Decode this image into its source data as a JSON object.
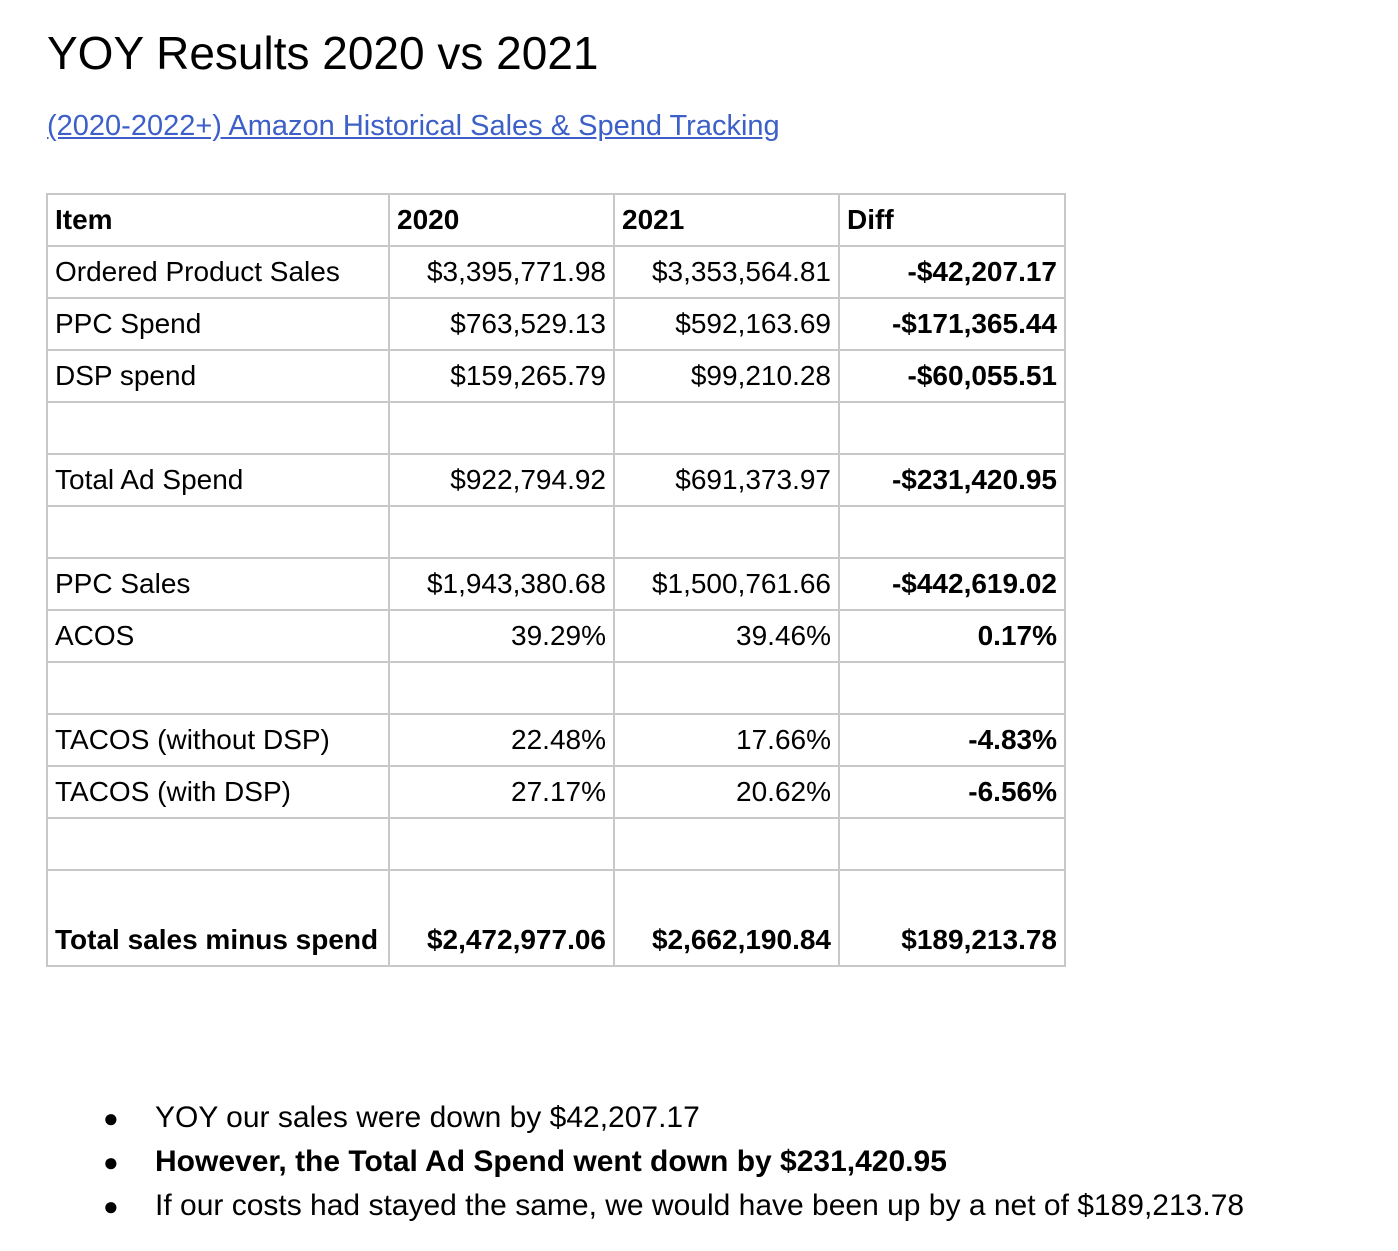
{
  "document": {
    "title": "YOY Results 2020 vs 2021",
    "link_text": "(2020-2022+) Amazon Historical Sales & Spend Tracking"
  },
  "table": {
    "headers": {
      "item": "Item",
      "y2020": "2020",
      "y2021": "2021",
      "diff": "Diff"
    },
    "rows": [
      {
        "item": "Ordered Product Sales",
        "y2020": "$3,395,771.98",
        "y2021": "$3,353,564.81",
        "diff": "-$42,207.17"
      },
      {
        "item": "PPC Spend",
        "y2020": "$763,529.13",
        "y2021": "$592,163.69",
        "diff": "-$171,365.44"
      },
      {
        "item": "DSP spend",
        "y2020": "$159,265.79",
        "y2021": "$99,210.28",
        "diff": "-$60,055.51"
      },
      {
        "item": "",
        "y2020": "",
        "y2021": "",
        "diff": ""
      },
      {
        "item": "Total Ad Spend",
        "y2020": "$922,794.92",
        "y2021": "$691,373.97",
        "diff": "-$231,420.95"
      },
      {
        "item": "",
        "y2020": "",
        "y2021": "",
        "diff": ""
      },
      {
        "item": "PPC Sales",
        "y2020": "$1,943,380.68",
        "y2021": "$1,500,761.66",
        "diff": "-$442,619.02"
      },
      {
        "item": "ACOS",
        "y2020": "39.29%",
        "y2021": "39.46%",
        "diff": "0.17%"
      },
      {
        "item": "",
        "y2020": "",
        "y2021": "",
        "diff": ""
      },
      {
        "item": "TACOS (without DSP)",
        "y2020": "22.48%",
        "y2021": "17.66%",
        "diff": "-4.83%"
      },
      {
        "item": "TACOS (with DSP)",
        "y2020": "27.17%",
        "y2021": "20.62%",
        "diff": "-6.56%"
      },
      {
        "item": "",
        "y2020": "",
        "y2021": "",
        "diff": ""
      },
      {
        "item": "Total sales minus spend",
        "y2020": "$2,472,977.06",
        "y2021": "$2,662,190.84",
        "diff": "$189,213.78"
      }
    ]
  },
  "summary": {
    "bullet_symbol": "●",
    "items": [
      "YOY our sales were down by $42,207.17",
      "However, the Total Ad Spend went down by $231,420.95",
      "If our costs had stayed the same, we would have been up by a net of $189,213.78"
    ]
  }
}
